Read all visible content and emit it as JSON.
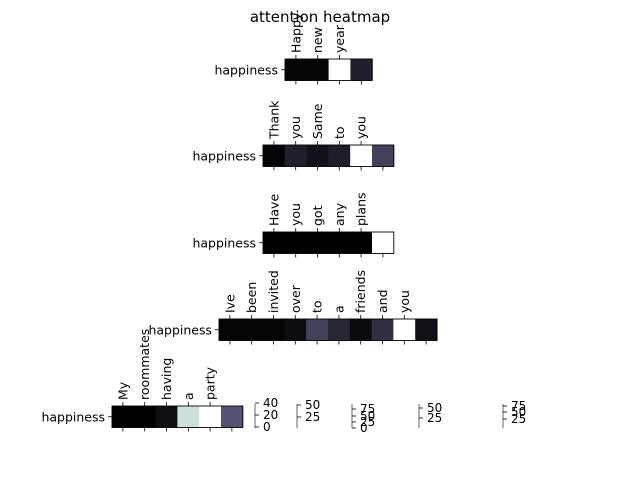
{
  "chart_data": {
    "type": "heatmap",
    "title": "attention heatmap",
    "colormap": "bone",
    "rows": [
      {
        "ylabel": "happiness",
        "tokens": [
          "Happy",
          "new",
          "year"
        ],
        "values": [
          0.02,
          0.02,
          1.0,
          0.15
        ]
      },
      {
        "ylabel": "happiness",
        "tokens": [
          "Thank",
          "you",
          "Same",
          "to",
          "you"
        ],
        "values": [
          0.02,
          0.15,
          0.08,
          0.14,
          1.0,
          0.3
        ]
      },
      {
        "ylabel": "happiness",
        "tokens": [
          "Have",
          "you",
          "got",
          "any",
          "plans"
        ],
        "values": [
          0.0,
          0.0,
          0.0,
          0.0,
          0.0,
          1.0
        ]
      },
      {
        "ylabel": "happiness",
        "tokens": [
          "Ive",
          "been",
          "invited",
          "over",
          "to",
          "a",
          "friends",
          "and",
          "you"
        ],
        "values": [
          0.02,
          0.02,
          0.02,
          0.06,
          0.3,
          0.18,
          0.05,
          0.22,
          1.0,
          0.08
        ]
      },
      {
        "ylabel": "happiness",
        "tokens": [
          "My",
          "roommates",
          "having",
          "a",
          "party"
        ],
        "values": [
          0.0,
          0.0,
          0.07,
          0.86,
          1.0,
          0.38
        ]
      }
    ],
    "colorbars": [
      {
        "ticks": [
          "40",
          "20",
          "0"
        ]
      },
      {
        "ticks": [
          "50",
          "25"
        ]
      },
      {
        "ticks": [
          "75",
          "50",
          "25",
          "0"
        ]
      },
      {
        "ticks": [
          "50",
          "25"
        ]
      },
      {
        "ticks": [
          "75",
          "50",
          "25"
        ]
      }
    ]
  }
}
